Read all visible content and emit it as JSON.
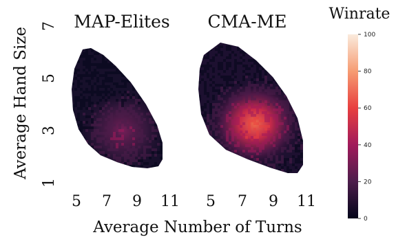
{
  "chart_data": [
    {
      "type": "heatmap",
      "title": "MAP-Elites",
      "xlabel": "Average Number of Turns",
      "ylabel": "Average Hand Size",
      "x_ticks": [
        5,
        7,
        9,
        11
      ],
      "y_ticks": [
        1,
        3,
        5,
        7
      ],
      "xlim": [
        4.3,
        11.6
      ],
      "ylim": [
        1,
        7
      ],
      "value_range": [
        0,
        100
      ],
      "description_points": [
        {
          "x": 5.5,
          "y": 5.6,
          "winrate": 5
        },
        {
          "x": 6.0,
          "y": 4.5,
          "winrate": 10
        },
        {
          "x": 7.0,
          "y": 3.2,
          "winrate": 22
        },
        {
          "x": 8.0,
          "y": 2.6,
          "winrate": 28
        },
        {
          "x": 9.0,
          "y": 2.0,
          "winrate": 20
        }
      ]
    },
    {
      "type": "heatmap",
      "title": "CMA-ME",
      "xlabel": "Average Number of Turns",
      "x_ticks": [
        5,
        7,
        9,
        11
      ],
      "xlim": [
        4.3,
        11.6
      ],
      "ylim": [
        1,
        7
      ],
      "value_range": [
        0,
        100
      ],
      "description_points": [
        {
          "x": 5.5,
          "y": 5.8,
          "winrate": 5
        },
        {
          "x": 6.5,
          "y": 4.0,
          "winrate": 25
        },
        {
          "x": 7.5,
          "y": 3.0,
          "winrate": 45
        },
        {
          "x": 8.5,
          "y": 2.5,
          "winrate": 35
        },
        {
          "x": 9.5,
          "y": 1.7,
          "winrate": 12
        }
      ]
    }
  ],
  "colorbar": {
    "label": "Winrate",
    "ticks": [
      0,
      20,
      40,
      60,
      80,
      100
    ],
    "colormap": [
      "#03051a",
      "#4c1d4b",
      "#a11a5b",
      "#e83f3f",
      "#f69c73",
      "#faebdd"
    ]
  }
}
